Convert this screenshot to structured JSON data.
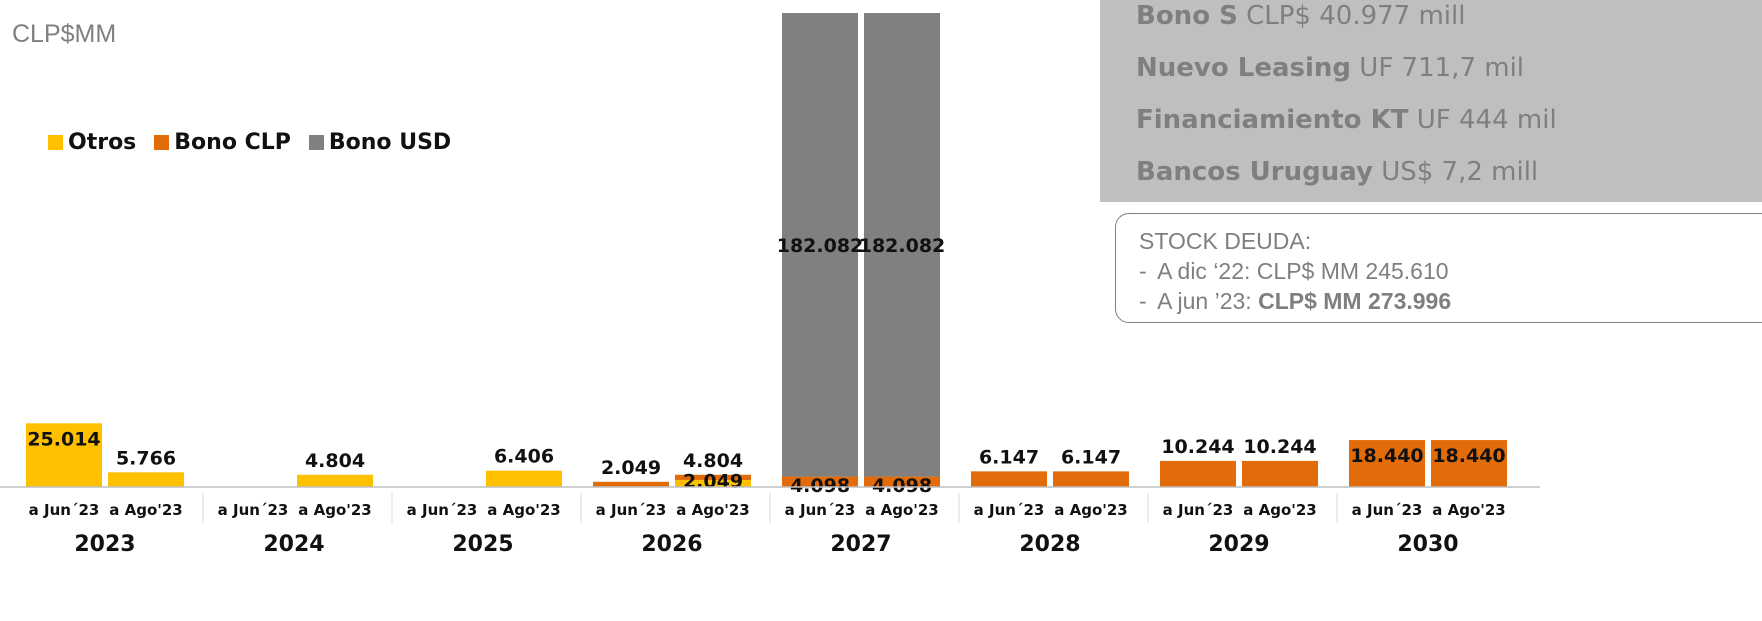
{
  "currency_label": "CLP$MM",
  "legend": [
    {
      "name": "Otros",
      "color": "#FFC000"
    },
    {
      "name": "Bono CLP",
      "color": "#E36C0A"
    },
    {
      "name": "Bono USD",
      "color": "#808080"
    }
  ],
  "info_box": {
    "lines": [
      {
        "label": "Bono S",
        "value": "CLP$ 40.977 mill"
      },
      {
        "label": "Nuevo Leasing",
        "value": "UF 711,7 mil"
      },
      {
        "label": "Financiamiento KT",
        "value": "UF 444 mil"
      },
      {
        "label": "Bancos Uruguay",
        "value": "US$ 7,2 mill"
      }
    ]
  },
  "stock_box": {
    "title": "STOCK DEUDA:",
    "line1_prefix": "-",
    "line1_label": "A dic ‘22: CLP$ MM  245.610",
    "line2_prefix": "-",
    "line2_label": "A jun ’23: ",
    "line2_value": "CLP$ MM  273.996"
  },
  "chart_data": {
    "type": "bar",
    "stacked": true,
    "groups": [
      {
        "year": "2023",
        "bars": [
          {
            "label": "a Jun´23",
            "values": {
              "Otros": 25014,
              "Bono CLP": 0,
              "Bono USD": 0
            },
            "data_labels": [
              {
                "text": "25.014",
                "segment": "Otros"
              }
            ]
          },
          {
            "label": "a Ago'23",
            "values": {
              "Otros": 5766,
              "Bono CLP": 0,
              "Bono USD": 0
            },
            "data_labels": [
              {
                "text": "5.766",
                "segment": "Otros"
              }
            ]
          }
        ]
      },
      {
        "year": "2024",
        "bars": [
          {
            "label": "a Jun´23",
            "values": {
              "Otros": 0,
              "Bono CLP": 0,
              "Bono USD": 0
            },
            "data_labels": []
          },
          {
            "label": "a Ago'23",
            "values": {
              "Otros": 4804,
              "Bono CLP": 0,
              "Bono USD": 0
            },
            "data_labels": [
              {
                "text": "4.804",
                "segment": "Otros"
              }
            ]
          }
        ]
      },
      {
        "year": "2025",
        "bars": [
          {
            "label": "a Jun´23",
            "values": {
              "Otros": 0,
              "Bono CLP": 0,
              "Bono USD": 0
            },
            "data_labels": []
          },
          {
            "label": "a Ago'23",
            "values": {
              "Otros": 6406,
              "Bono CLP": 0,
              "Bono USD": 0
            },
            "data_labels": [
              {
                "text": "6.406",
                "segment": "Otros"
              }
            ]
          }
        ]
      },
      {
        "year": "2026",
        "bars": [
          {
            "label": "a Jun´23",
            "values": {
              "Otros": 0,
              "Bono CLP": 2049,
              "Bono USD": 0
            },
            "data_labels": [
              {
                "text": "2.049",
                "segment": "Bono CLP"
              }
            ]
          },
          {
            "label": "a Ago'23",
            "values": {
              "Otros": 2755,
              "Bono CLP": 2049,
              "Bono USD": 0
            },
            "data_labels": [
              {
                "text": "4.804",
                "segment": "total"
              },
              {
                "text": "2.049",
                "segment": "Bono CLP"
              }
            ]
          }
        ]
      },
      {
        "year": "2027",
        "bars": [
          {
            "label": "a Jun´23",
            "values": {
              "Otros": 0,
              "Bono CLP": 4098,
              "Bono USD": 182082
            },
            "data_labels": [
              {
                "text": "4.098",
                "segment": "Bono CLP"
              },
              {
                "text": "182.082",
                "segment": "Bono USD"
              }
            ]
          },
          {
            "label": "a Ago'23",
            "values": {
              "Otros": 0,
              "Bono CLP": 4098,
              "Bono USD": 182082
            },
            "data_labels": [
              {
                "text": "4.098",
                "segment": "Bono CLP"
              },
              {
                "text": "182.082",
                "segment": "Bono USD"
              }
            ]
          }
        ]
      },
      {
        "year": "2028",
        "bars": [
          {
            "label": "a Jun´23",
            "values": {
              "Otros": 0,
              "Bono CLP": 6147,
              "Bono USD": 0
            },
            "data_labels": [
              {
                "text": "6.147",
                "segment": "Bono CLP"
              }
            ]
          },
          {
            "label": "a Ago'23",
            "values": {
              "Otros": 0,
              "Bono CLP": 6147,
              "Bono USD": 0
            },
            "data_labels": [
              {
                "text": "6.147",
                "segment": "Bono CLP"
              }
            ]
          }
        ]
      },
      {
        "year": "2029",
        "bars": [
          {
            "label": "a Jun´23",
            "values": {
              "Otros": 0,
              "Bono CLP": 10244,
              "Bono USD": 0
            },
            "data_labels": [
              {
                "text": "10.244",
                "segment": "Bono CLP"
              }
            ]
          },
          {
            "label": "a Ago'23",
            "values": {
              "Otros": 0,
              "Bono CLP": 10244,
              "Bono USD": 0
            },
            "data_labels": [
              {
                "text": "10.244",
                "segment": "Bono CLP"
              }
            ]
          }
        ]
      },
      {
        "year": "2030",
        "bars": [
          {
            "label": "a Jun´23",
            "values": {
              "Otros": 0,
              "Bono CLP": 18440,
              "Bono USD": 0
            },
            "data_labels": [
              {
                "text": "18.440",
                "segment": "Bono CLP"
              }
            ]
          },
          {
            "label": "a Ago'23",
            "values": {
              "Otros": 0,
              "Bono CLP": 18440,
              "Bono USD": 0
            },
            "data_labels": [
              {
                "text": "18.440",
                "segment": "Bono CLP"
              }
            ]
          }
        ]
      }
    ],
    "series_colors": {
      "Otros": "#FFC000",
      "Bono CLP": "#E36C0A",
      "Bono USD": "#808080"
    },
    "grid": false,
    "legend_position": "top-left",
    "ylim": [
      0,
      195000
    ]
  }
}
